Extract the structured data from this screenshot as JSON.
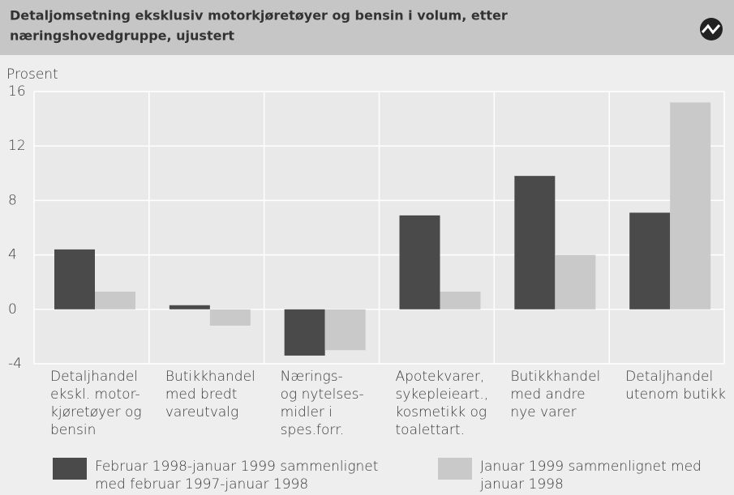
{
  "chart_data": {
    "type": "bar",
    "title": [
      "Detaljomsetning eksklusiv motorkjøretøyer og bensin i volum, etter",
      "næringshovedgruppe,  ujustert"
    ],
    "y_label": "Prosent",
    "categories": [
      [
        "Detaljhandel",
        "ekskl. motor-",
        "kjøretøyer og",
        "bensin"
      ],
      [
        "Butikkhandel",
        "med bredt",
        "vareutvalg"
      ],
      [
        "Nærings-",
        "og nytelses-",
        "midler i",
        "spes.forr."
      ],
      [
        "Apotekvarer,",
        "sykepleieart.,",
        "kosmetikk og",
        "toalettart."
      ],
      [
        "Butikkhandel",
        "med andre",
        "nye varer"
      ],
      [
        "Detaljhandel",
        "utenom butikk"
      ]
    ],
    "series": [
      {
        "name": [
          "Februar 1998-januar 1999 sammenlignet",
          "med februar 1997-januar 1998"
        ],
        "color": "#4a4a4a",
        "values": [
          4.4,
          0.3,
          -3.4,
          6.9,
          9.8,
          7.1
        ]
      },
      {
        "name": [
          "Januar 1999 sammenlignet med",
          "januar 1998"
        ],
        "color": "#c9c9c9",
        "values": [
          1.3,
          -1.2,
          -3.0,
          1.3,
          4.0,
          15.2
        ]
      }
    ],
    "ylim": [
      -4,
      16
    ],
    "yticks": [
      -4,
      0,
      4,
      8,
      12,
      16
    ],
    "grid": true
  }
}
